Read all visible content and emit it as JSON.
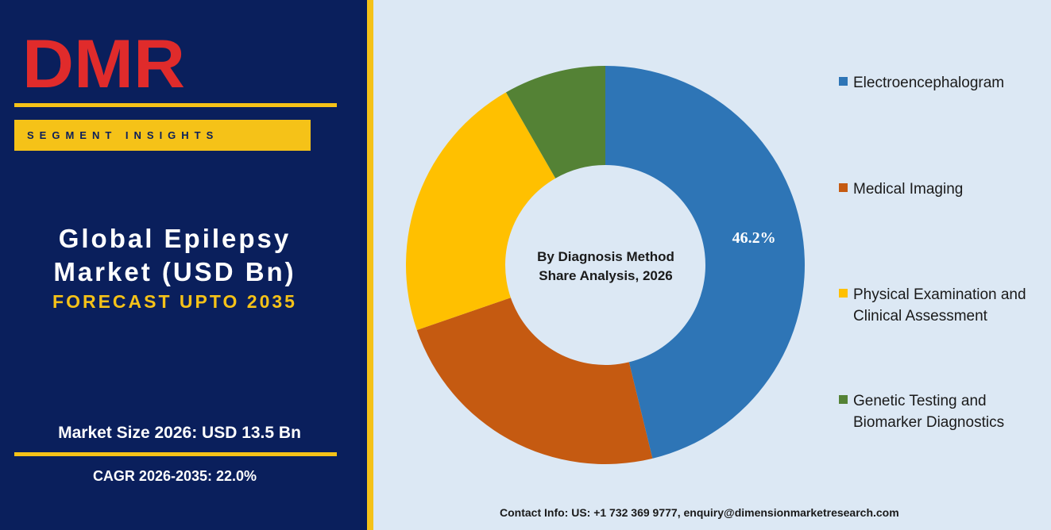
{
  "logo": {
    "text": "DMR"
  },
  "sidebar": {
    "badge": "SEGMENT INSIGHTS",
    "title_line1": "Global Epilepsy",
    "title_line2": "Market (USD Bn)",
    "forecast": "FORECAST UPTO 2035",
    "market_size": "Market Size 2026: USD 13.5 Bn",
    "cagr": "CAGR 2026-2035: 22.0%"
  },
  "contact": "Contact Info: US: +1 732 369 9777, enquiry@dimensionmarketresearch.com",
  "colors": {
    "navy": "#0a1f5c",
    "gold": "#f5c218",
    "logo_red": "#e02b2b",
    "logo_grey": "#a9c2c6"
  },
  "chart_data": {
    "type": "pie",
    "donut": true,
    "center_label_line1": "By Diagnosis Method",
    "center_label_line2": "Share Analysis, 2026",
    "legend_position": "right",
    "slices": [
      {
        "name": "Electroencephalogram",
        "value": 46.2,
        "color": "#2e75b6",
        "label": "46.2%"
      },
      {
        "name": "Medical Imaging",
        "value": 23.5,
        "color": "#c55a11",
        "label": ""
      },
      {
        "name": "Physical Examination and Clinical Assessment",
        "value": 22.0,
        "color": "#ffc000",
        "label": ""
      },
      {
        "name": "Genetic Testing and Biomarker Diagnostics",
        "value": 8.3,
        "color": "#548235",
        "label": ""
      }
    ]
  }
}
